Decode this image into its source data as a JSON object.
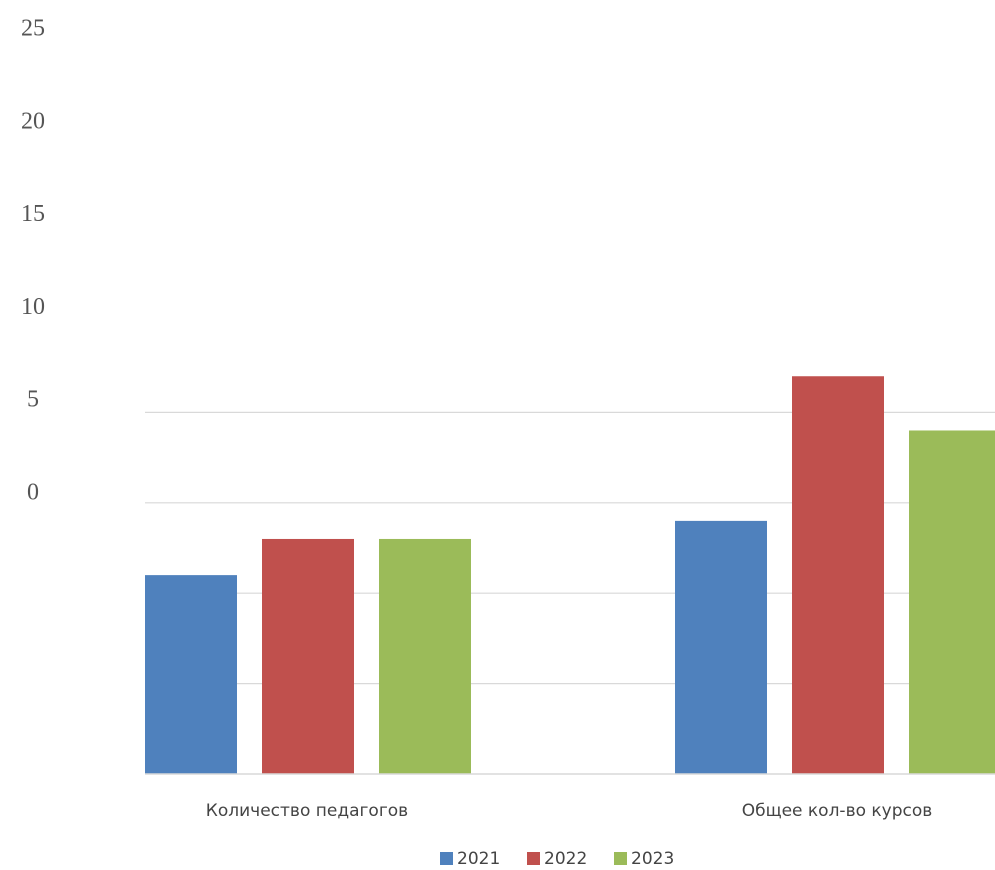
{
  "chart_data": {
    "type": "bar",
    "categories": [
      "Количество педагогов",
      "Общее кол-во курсов"
    ],
    "series": [
      {
        "name": "2021",
        "color": "#4F81BD",
        "values": [
          11,
          14
        ]
      },
      {
        "name": "2022",
        "color": "#C0504D",
        "values": [
          13,
          22
        ]
      },
      {
        "name": "2023",
        "color": "#9BBB59",
        "values": [
          13,
          19
        ]
      }
    ],
    "y_tick_labels": [
      "25",
      "20",
      "15",
      "10",
      "5",
      "0"
    ],
    "ylim": [
      0,
      25
    ],
    "grid": true,
    "legend_position": "bottom"
  }
}
